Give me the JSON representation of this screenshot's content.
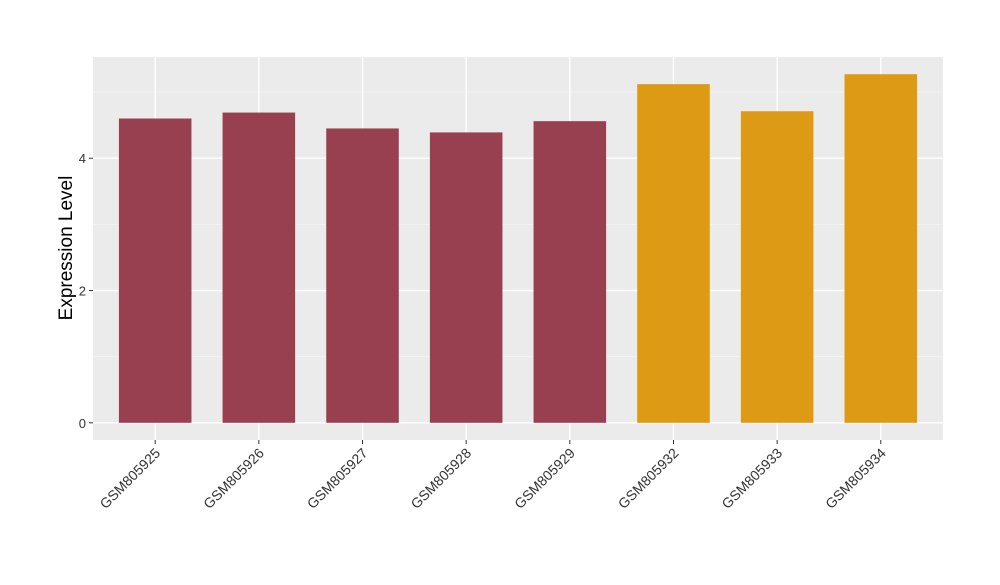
{
  "chart_data": {
    "type": "bar",
    "y_label": "Expression Level",
    "categories": [
      "GSM805925",
      "GSM805926",
      "GSM805927",
      "GSM805928",
      "GSM805929",
      "GSM805932",
      "GSM805933",
      "GSM805934"
    ],
    "values": [
      4.6,
      4.69,
      4.45,
      4.39,
      4.56,
      5.12,
      4.71,
      5.27
    ],
    "colors": [
      "#98404f",
      "#98404f",
      "#98404f",
      "#98404f",
      "#98404f",
      "#dc9a15",
      "#dc9a15",
      "#dc9a15"
    ],
    "ylim": [
      -0.26,
      5.53
    ],
    "yticks": [
      0,
      2,
      4
    ],
    "y_minor_grid": [
      1,
      3,
      5
    ],
    "grid": true
  }
}
